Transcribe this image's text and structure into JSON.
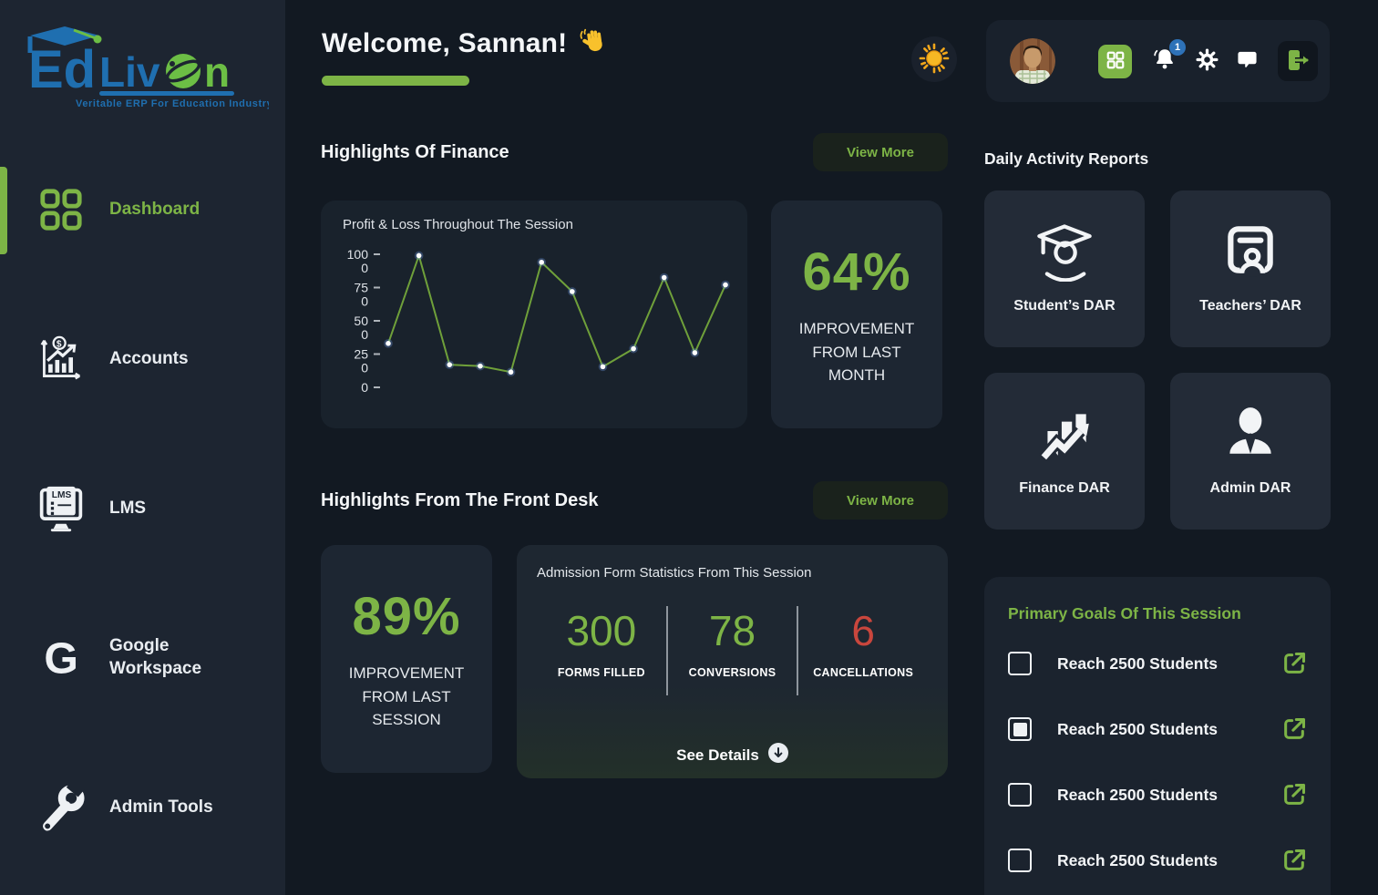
{
  "colors": {
    "accent": "#7db446",
    "red": "#c9463d",
    "badge_blue": "#2e72b8",
    "logo_blue": "#1f6fb0",
    "logo_green": "#6cbe45"
  },
  "sidebar": {
    "logo": {
      "brand": "EdLivOn",
      "parts": {
        "p1": "Ed",
        "p2": "Liv",
        "p3": "n"
      },
      "tagline": "Veritable ERP For Education Industry"
    },
    "items": [
      {
        "label": "Dashboard",
        "active": true
      },
      {
        "label": "Accounts",
        "active": false
      },
      {
        "label": "LMS",
        "active": false
      },
      {
        "label": "Google Workspace",
        "active": false
      },
      {
        "label": "Admin Tools",
        "active": false
      }
    ]
  },
  "header": {
    "welcome": "Welcome, Sannan!",
    "notification_count": "1"
  },
  "finance": {
    "section_title": "Highlights Of Finance",
    "view_more": "View More",
    "improvement_value": "64%",
    "improvement_label": "IMPROVEMENT FROM LAST MONTH"
  },
  "front_desk": {
    "section_title": "Highlights From The Front Desk",
    "view_more": "View More",
    "improvement_value": "89%",
    "improvement_label": "IMPROVEMENT FROM LAST SESSION",
    "admission": {
      "title": "Admission Form Statistics From This Session",
      "stats": [
        {
          "value": "300",
          "label": "FORMS FILLED",
          "color": "green"
        },
        {
          "value": "78",
          "label": "CONVERSIONS",
          "color": "green"
        },
        {
          "value": "6",
          "label": "CANCELLATIONS",
          "color": "red"
        }
      ],
      "see_details": "See Details"
    }
  },
  "dar": {
    "title": "Daily Activity Reports",
    "cards": [
      {
        "label": "Student’s DAR"
      },
      {
        "label": "Teachers’ DAR"
      },
      {
        "label": "Finance DAR"
      },
      {
        "label": "Admin DAR"
      }
    ]
  },
  "goals": {
    "title": "Primary Goals Of This Session",
    "items": [
      {
        "label": "Reach 2500 Students",
        "checked": false
      },
      {
        "label": "Reach 2500 Students",
        "checked": true
      },
      {
        "label": "Reach 2500 Students",
        "checked": false
      },
      {
        "label": "Reach 2500 Students",
        "checked": false
      }
    ]
  },
  "chart_data": {
    "type": "line",
    "title": "Profit & Loss Throughout The Session",
    "x": [
      1,
      2,
      3,
      4,
      5,
      6,
      7,
      8,
      9,
      10,
      11,
      12
    ],
    "values": [
      330,
      990,
      170,
      160,
      115,
      940,
      720,
      155,
      290,
      825,
      260,
      770
    ],
    "ylim": [
      0,
      1000
    ],
    "yticks": [
      1000,
      750,
      500,
      250,
      0
    ],
    "xlabel": "",
    "ylabel": "",
    "grid": false,
    "legend": false,
    "line_color": "#6fa03a",
    "point_color": "#ffffff"
  }
}
